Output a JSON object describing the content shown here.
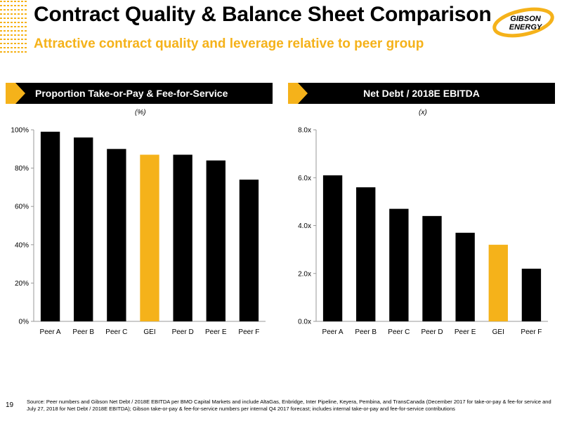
{
  "title": "Contract Quality & Balance Sheet Comparison",
  "subtitle": "Attractive contract quality and leverage relative to peer group",
  "logo": {
    "line1": "GIBSON",
    "line2": "ENERGY"
  },
  "colors": {
    "accent": "#F5B21A",
    "bar": "#000000",
    "header_bg": "#000000"
  },
  "left_panel": {
    "header": "Proportion Take-or-Pay & Fee-for-Service",
    "unit": "(%)"
  },
  "right_panel": {
    "header": "Net Debt / 2018E EBITDA",
    "unit": "(x)"
  },
  "chart_data": [
    {
      "type": "bar",
      "categories": [
        "Peer A",
        "Peer B",
        "Peer C",
        "GEI",
        "Peer D",
        "Peer E",
        "Peer F"
      ],
      "values": [
        99,
        96,
        90,
        87,
        87,
        84,
        74
      ],
      "highlight": "GEI",
      "ylim": [
        0,
        100
      ],
      "yticks": [
        "0%",
        "20%",
        "40%",
        "60%",
        "80%",
        "100%"
      ],
      "title": "Proportion Take-or-Pay & Fee-for-Service",
      "ylabel": "(%)"
    },
    {
      "type": "bar",
      "categories": [
        "Peer A",
        "Peer B",
        "Peer C",
        "Peer D",
        "Peer E",
        "GEI",
        "Peer F"
      ],
      "values": [
        6.1,
        5.6,
        4.7,
        4.4,
        3.7,
        3.2,
        2.2
      ],
      "highlight": "GEI",
      "ylim": [
        0,
        8
      ],
      "yticks": [
        "0.0x",
        "2.0x",
        "4.0x",
        "6.0x",
        "8.0x"
      ],
      "title": "Net Debt / 2018E EBITDA",
      "ylabel": "(x)"
    }
  ],
  "page_number": "19",
  "source": "Source: Peer numbers and Gibson Net Debt / 2018E EBITDA per BMO Capital Markets and include AltaGas, Enbridge, Inter Pipeline, Keyera, Pembina, and TransCanada (December 2017 for take-or-pay & fee-for service and July 27, 2018 for Net Debt / 2018E EBITDA); Gibson take-or-pay & fee-for-service numbers per internal Q4 2017 forecast; includes internal take-or-pay and fee-for-service contributions"
}
